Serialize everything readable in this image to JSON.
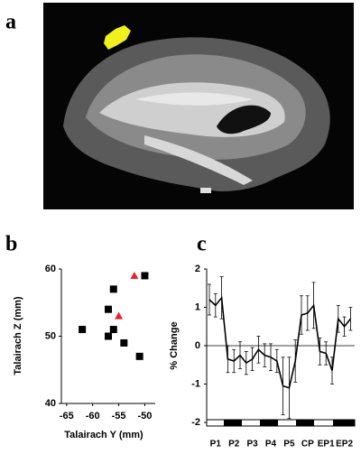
{
  "figure": {
    "panel_labels": [
      "a",
      "b",
      "c"
    ]
  },
  "chart_data": [
    {
      "type": "scatter",
      "xlabel": "Talairach Y (mm)",
      "ylabel": "Talairach Z (mm)",
      "xlim": [
        -66,
        -48
      ],
      "xticks": [
        -65,
        -60,
        -55,
        -50
      ],
      "ylim": [
        40,
        60
      ],
      "yticks": [
        40,
        50,
        60
      ],
      "series": [
        {
          "color": "#000000",
          "marker": "square",
          "x": [
            -50,
            -56,
            -57,
            -62,
            -56,
            -57,
            -54,
            -51
          ],
          "values": [
            59,
            57,
            54,
            51,
            51,
            50,
            49,
            47
          ]
        },
        {
          "color": "#e8252a",
          "marker": "triangle",
          "x": [
            -52,
            -55
          ],
          "values": [
            59,
            53
          ]
        }
      ]
    },
    {
      "type": "line",
      "ylabel": "% Change",
      "color": "#000000",
      "categories": [
        null,
        "P1",
        null,
        null,
        "P2",
        null,
        null,
        "P3",
        null,
        null,
        "P4",
        null,
        null,
        "P5",
        null,
        null,
        "CP",
        null,
        null,
        "EP1",
        null,
        null,
        "EP2",
        null
      ],
      "values": [
        1.2,
        1.05,
        1.25,
        -0.35,
        -0.4,
        -0.25,
        -0.45,
        -0.35,
        -0.1,
        -0.25,
        -0.3,
        -0.4,
        -1.05,
        -1.1,
        -0.4,
        0.8,
        0.85,
        1.05,
        -0.15,
        -0.2,
        -0.65,
        0.7,
        0.5,
        0.7
      ],
      "errors": [
        0.4,
        0.3,
        0.55,
        0.35,
        0.3,
        0.35,
        0.3,
        0.3,
        0.35,
        0.3,
        0.35,
        0.3,
        0.75,
        0.8,
        0.55,
        0.5,
        0.45,
        0.6,
        0.35,
        0.3,
        0.35,
        0.35,
        0.25,
        0.3
      ],
      "ylim": [
        -2,
        2
      ],
      "yticks": [
        -2,
        -1,
        0,
        1,
        2
      ]
    }
  ]
}
